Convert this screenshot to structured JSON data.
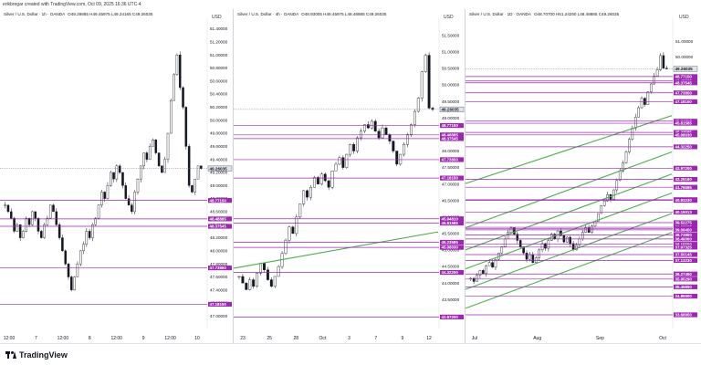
{
  "header": {
    "text": "erikbregar created with TradingView.com, Oct 09, 2025 16:36 UTC-4"
  },
  "footer": {
    "brand": "TradingView"
  },
  "colors": {
    "up": "#ffffff",
    "down": "#131722",
    "level": "#9c27b0",
    "trend": "#4caf50",
    "label_bg": "#9c27b0"
  },
  "chart_data": [
    {
      "type": "candlestick",
      "title_symbol": "Silver / U.S. Dollar · 1h · OANDA",
      "title_ohlc": "O49.29865 H49.45975 L49.24165 C49.26035",
      "currency": "USD",
      "ylim": [
        46.95,
        51.45
      ],
      "y_ticks": [
        "51.40000",
        "51.20000",
        "51.00000",
        "50.80000",
        "50.60000",
        "50.40000",
        "50.20000",
        "50.00000",
        "49.80000",
        "49.60000",
        "49.40000",
        "49.20000",
        "49.00000",
        "48.80000",
        "48.60000",
        "48.40000",
        "48.20000",
        "48.00000",
        "47.80000",
        "47.60000",
        "47.40000",
        "47.20000",
        "47.00000"
      ],
      "x_labels": [
        "12:00",
        "7",
        "12:00",
        "8",
        "12:00",
        "9",
        "12:00",
        "10"
      ],
      "last_price": "49.26035",
      "levels": [
        {
          "label": "48.77150",
          "value": 48.7715
        },
        {
          "label": "48.48885",
          "value": 48.48885
        },
        {
          "label": "48.37545",
          "value": 48.37545
        },
        {
          "label": "47.73850",
          "value": 47.7385
        },
        {
          "label": "47.18150",
          "value": 47.1815
        }
      ],
      "trendlines": []
    },
    {
      "type": "candlestick",
      "title_symbol": "Silver / U.S. Dollar · 4h · OANDA",
      "title_ohlc": "O48.93005 H49.45975 L48.48885 C49.26035",
      "currency": "USD",
      "ylim": [
        42.9,
        51.8
      ],
      "y_ticks": [
        "51.50000",
        "51.00000",
        "50.50000",
        "50.00000",
        "49.50000",
        "49.00000",
        "48.50000",
        "48.00000",
        "47.50000",
        "47.00000",
        "46.50000",
        "46.00000",
        "45.50000",
        "45.00000",
        "44.50000",
        "44.00000",
        "43.50000",
        "43.00000"
      ],
      "x_labels": [
        "23",
        "25",
        "28",
        "Oct",
        "3",
        "7",
        "9",
        "12"
      ],
      "last_price": "49.26035",
      "levels": [
        {
          "label": "48.77150",
          "value": 48.7715
        },
        {
          "label": "48.48885",
          "value": 48.48885
        },
        {
          "label": "48.37545",
          "value": 48.37545
        },
        {
          "label": "47.73850",
          "value": 47.7385
        },
        {
          "label": "47.18150",
          "value": 47.1815
        },
        {
          "label": "45.94810",
          "value": 45.9481
        },
        {
          "label": "45.81585",
          "value": 45.81585
        },
        {
          "label": "45.23585",
          "value": 45.23585
        },
        {
          "label": "45.08030",
          "value": 45.0803
        },
        {
          "label": "44.32250",
          "value": 44.3225
        },
        {
          "label": "42.97200",
          "value": 42.972
        }
      ],
      "trendlines": [
        {
          "from": [
            0.0,
            44.45
          ],
          "to": [
            1.0,
            45.55
          ]
        }
      ]
    },
    {
      "type": "candlestick",
      "title_symbol": "Silver / U.S. Dollar · 1D · OANDA",
      "title_ohlc": "O48.70700 H51.24250 L48.48885 C49.26035",
      "currency": "USD",
      "ylim": [
        33.4,
        52.0
      ],
      "y_ticks": [
        "51.00000",
        "50.00000"
      ],
      "x_labels": [
        "Jul",
        "Aug",
        "Sep",
        "Oct"
      ],
      "last_price": "49.26035",
      "levels": [
        {
          "label": "48.77150",
          "value": 48.7715
        },
        {
          "label": "48.48885",
          "value": 48.48885
        },
        {
          "label": "48.37545",
          "value": 48.37545
        },
        {
          "label": "47.73850",
          "value": 47.7385
        },
        {
          "label": "47.18150",
          "value": 47.1815
        },
        {
          "label": "45.94810",
          "value": 45.9481
        },
        {
          "label": "45.81585",
          "value": 45.81585
        },
        {
          "label": "45.23585",
          "value": 45.23585
        },
        {
          "label": "45.08030",
          "value": 45.0803
        },
        {
          "label": "44.32250",
          "value": 44.3225
        },
        {
          "label": "42.97200",
          "value": 42.972
        },
        {
          "label": "42.26160",
          "value": 42.2616
        },
        {
          "label": "41.76595",
          "value": 41.76595
        },
        {
          "label": "40.97785",
          "value": 40.97785
        },
        {
          "label": "40.93230",
          "value": 40.9323
        },
        {
          "label": "40.19013",
          "value": 40.19013
        },
        {
          "label": "39.52275",
          "value": 39.52275
        },
        {
          "label": "39.23035",
          "value": 39.23035
        },
        {
          "label": "39.13280",
          "value": 39.1328
        },
        {
          "label": "39.06450",
          "value": 39.0645
        },
        {
          "label": "38.73800",
          "value": 38.738
        },
        {
          "label": "38.49000",
          "value": 38.49
        },
        {
          "label": "38.15550",
          "value": 38.1555
        },
        {
          "label": "37.97325",
          "value": 37.97325
        },
        {
          "label": "37.50145",
          "value": 37.50145
        },
        {
          "label": "37.13230",
          "value": 37.1323
        },
        {
          "label": "36.27450",
          "value": 36.2745
        },
        {
          "label": "35.95290",
          "value": 35.9529
        },
        {
          "label": "35.45850",
          "value": 35.4585
        },
        {
          "label": "34.86900",
          "value": 34.869
        },
        {
          "label": "33.68950",
          "value": 33.6895
        }
      ],
      "trendlines": [
        {
          "from": [
            0.0,
            42.0
          ],
          "to": [
            1.0,
            46.3
          ]
        },
        {
          "from": [
            0.0,
            39.2
          ],
          "to": [
            1.0,
            44.0
          ]
        },
        {
          "from": [
            0.0,
            37.8
          ],
          "to": [
            1.0,
            42.6
          ]
        },
        {
          "from": [
            0.0,
            36.6
          ],
          "to": [
            1.0,
            41.4
          ]
        },
        {
          "from": [
            0.0,
            35.3
          ],
          "to": [
            1.0,
            40.1
          ]
        },
        {
          "from": [
            0.0,
            34.1
          ],
          "to": [
            1.0,
            38.9
          ]
        }
      ]
    }
  ]
}
